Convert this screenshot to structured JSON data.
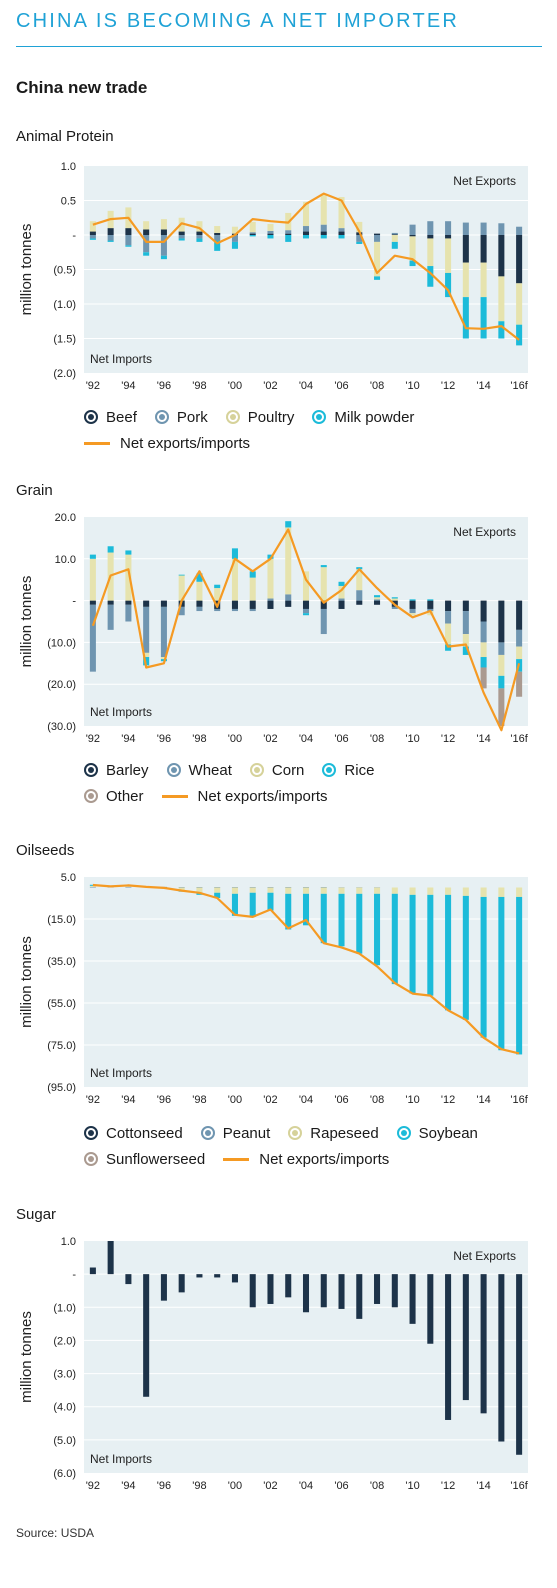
{
  "header": {
    "title": "CHINA IS BECOMING A NET IMPORTER",
    "subtitle": "China new trade",
    "source": "Source: USDA"
  },
  "colors": {
    "accent": "#1fa2d6",
    "panel_bg": "#e7f0f3",
    "navy": "#1d3349",
    "grey_blue": "#6f95b0",
    "cream": "#e6e3ae",
    "cyan": "#1cbbd9",
    "taupe": "#aa9a90",
    "orange": "#f59a23"
  },
  "chart_data": [
    {
      "type": "bar",
      "title": "Animal Protein",
      "ylabel": "million tonnes",
      "ylim": [
        -2.0,
        1.0
      ],
      "yticks": [
        1.0,
        0.5,
        0,
        -0.5,
        -1.0,
        -1.5,
        -2.0
      ],
      "ytick_labels": [
        "1.0",
        "0.5",
        "-",
        "(0.5)",
        "(1.0)",
        "(1.5)",
        "(2.0)"
      ],
      "stacked": true,
      "categories": [
        "1992",
        "1993",
        "1994",
        "1995",
        "1996",
        "1997",
        "1998",
        "1999",
        "2000",
        "2001",
        "2002",
        "2003",
        "2004",
        "2005",
        "2006",
        "2007",
        "2008",
        "2009",
        "2010",
        "2011",
        "2012",
        "2013",
        "2014",
        "2015",
        "2016f"
      ],
      "xtick_labels": [
        "'92",
        "'94",
        "'96",
        "'98",
        "'00",
        "'02",
        "'04",
        "'06",
        "'08",
        "'10",
        "'12",
        "'14",
        "'16f"
      ],
      "annotations": {
        "top": "Net Exports",
        "bottom": "Net Imports"
      },
      "series": [
        {
          "name": "Beef",
          "color": "#1d3349",
          "values": [
            0.05,
            0.1,
            0.1,
            0.08,
            0.08,
            0.05,
            0.05,
            0.03,
            0.02,
            0.02,
            0.02,
            0.02,
            0.05,
            0.05,
            0.05,
            0.04,
            0.02,
            0.01,
            -0.02,
            -0.05,
            -0.05,
            -0.4,
            -0.4,
            -0.6,
            -0.7
          ]
        },
        {
          "name": "Pork",
          "color": "#6f95b0",
          "values": [
            -0.05,
            -0.08,
            -0.15,
            -0.25,
            -0.3,
            -0.05,
            -0.05,
            -0.08,
            -0.1,
            0.02,
            0.04,
            0.05,
            0.08,
            0.1,
            0.05,
            -0.1,
            -0.1,
            0.02,
            0.15,
            0.2,
            0.2,
            0.18,
            0.18,
            0.17,
            0.12
          ]
        },
        {
          "name": "Poultry",
          "color": "#e6e3ae",
          "values": [
            0.15,
            0.25,
            0.3,
            0.12,
            0.15,
            0.2,
            0.15,
            0.1,
            0.1,
            0.15,
            0.1,
            0.25,
            0.35,
            0.45,
            0.45,
            0.15,
            -0.5,
            -0.1,
            -0.35,
            -0.4,
            -0.5,
            -0.5,
            -0.5,
            -0.65,
            -0.6
          ]
        },
        {
          "name": "Milk powder",
          "color": "#1cbbd9",
          "values": [
            -0.02,
            -0.02,
            -0.02,
            -0.05,
            -0.05,
            -0.03,
            -0.05,
            -0.15,
            -0.1,
            -0.02,
            -0.05,
            -0.1,
            -0.05,
            -0.05,
            -0.05,
            -0.03,
            -0.05,
            -0.1,
            -0.08,
            -0.3,
            -0.35,
            -0.6,
            -0.6,
            -0.25,
            -0.3
          ]
        }
      ],
      "line": {
        "name": "Net exports/imports",
        "color": "#f59a23",
        "values": [
          0.15,
          0.23,
          0.25,
          -0.1,
          -0.1,
          0.17,
          0.1,
          -0.12,
          0.0,
          0.23,
          0.2,
          0.18,
          0.45,
          0.6,
          0.5,
          0.05,
          -0.55,
          -0.3,
          -0.35,
          -0.55,
          -0.8,
          -1.35,
          -1.36,
          -1.32,
          -1.52
        ]
      },
      "legend": [
        {
          "label": "Beef",
          "color": "#1d3349",
          "kind": "circle"
        },
        {
          "label": "Pork",
          "color": "#6f95b0",
          "kind": "circle"
        },
        {
          "label": "Poultry",
          "color": "#e6e3ae",
          "kind": "circle"
        },
        {
          "label": "Milk powder",
          "color": "#1cbbd9",
          "kind": "circle"
        },
        {
          "label": "Net exports/imports",
          "color": "#f59a23",
          "kind": "line"
        }
      ]
    },
    {
      "type": "bar",
      "title": "Grain",
      "ylabel": "million tonnes",
      "ylim": [
        -30.0,
        20.0
      ],
      "yticks": [
        20,
        10,
        0,
        -10,
        -20,
        -30
      ],
      "ytick_labels": [
        "20.0",
        "10.0",
        "-",
        "(10.0)",
        "(20.0)",
        "(30.0)"
      ],
      "stacked": true,
      "categories": [
        "1992",
        "1993",
        "1994",
        "1995",
        "1996",
        "1997",
        "1998",
        "1999",
        "2000",
        "2001",
        "2002",
        "2003",
        "2004",
        "2005",
        "2006",
        "2007",
        "2008",
        "2009",
        "2010",
        "2011",
        "2012",
        "2013",
        "2014",
        "2015",
        "2016f"
      ],
      "xtick_labels": [
        "'92",
        "'94",
        "'96",
        "'98",
        "'00",
        "'02",
        "'04",
        "'06",
        "'08",
        "'10",
        "'12",
        "'14",
        "'16f"
      ],
      "annotations": {
        "top": "Net Exports",
        "bottom": "Net Imports"
      },
      "series": [
        {
          "name": "Barley",
          "color": "#1d3349",
          "values": [
            -1,
            -1,
            -1,
            -1.5,
            -1.5,
            -1.5,
            -1.5,
            -2,
            -2,
            -2,
            -2,
            -1.5,
            -2,
            -2,
            -2,
            -1,
            -1,
            -1.5,
            -2,
            -2,
            -2.5,
            -2.5,
            -5,
            -10,
            -7
          ]
        },
        {
          "name": "Wheat",
          "color": "#6f95b0",
          "values": [
            -16,
            -6,
            -4,
            -11,
            -12,
            -2,
            -1,
            -0.5,
            -0.5,
            -0.5,
            0.5,
            1.5,
            -1,
            -6,
            0.5,
            2.5,
            0.3,
            -0.5,
            -1,
            -0.5,
            -3,
            -5.5,
            -5,
            -3,
            -4
          ]
        },
        {
          "name": "Corn",
          "color": "#e6e3ae",
          "values": [
            10,
            11.5,
            11,
            -1,
            -0.5,
            6,
            4.5,
            3,
            10,
            5.5,
            9.5,
            16,
            7,
            8,
            3,
            5,
            0.5,
            0.5,
            -0.5,
            -1,
            -5,
            -3,
            -3.5,
            -5,
            -3
          ]
        },
        {
          "name": "Rice",
          "color": "#1cbbd9",
          "values": [
            1,
            1.5,
            1,
            -2,
            -0.5,
            0.2,
            2,
            0.8,
            2.5,
            1.5,
            1,
            1.5,
            -0.5,
            0.5,
            1,
            0.5,
            0.5,
            0.3,
            0.3,
            0.3,
            -1.5,
            -2,
            -2.5,
            -3,
            -3
          ]
        },
        {
          "name": "Other",
          "color": "#aa9a90",
          "values": [
            0,
            0,
            0,
            0,
            0,
            0,
            0,
            0,
            0,
            0,
            0,
            0,
            0,
            0,
            0,
            0,
            0,
            0,
            0,
            0,
            0,
            0,
            -5,
            -9,
            -6
          ]
        }
      ],
      "line": {
        "name": "Net exports/imports",
        "color": "#f59a23",
        "values": [
          -6,
          6,
          7.5,
          -16,
          -15,
          0,
          7,
          -1.5,
          10,
          7,
          10,
          17,
          5,
          -0.5,
          2.5,
          7.5,
          3,
          -1,
          -4,
          -2.5,
          -11,
          -10.5,
          -22,
          -31,
          -15
        ]
      },
      "legend": [
        {
          "label": "Barley",
          "color": "#1d3349",
          "kind": "circle"
        },
        {
          "label": "Wheat",
          "color": "#6f95b0",
          "kind": "circle"
        },
        {
          "label": "Corn",
          "color": "#e6e3ae",
          "kind": "circle"
        },
        {
          "label": "Rice",
          "color": "#1cbbd9",
          "kind": "circle"
        },
        {
          "label": "Other",
          "color": "#aa9a90",
          "kind": "circle"
        },
        {
          "label": "Net exports/imports",
          "color": "#f59a23",
          "kind": "line"
        }
      ]
    },
    {
      "type": "bar",
      "title": "Oilseeds",
      "ylabel": "million tonnes",
      "ylim": [
        -95.0,
        5.0
      ],
      "yticks": [
        5,
        -15,
        -35,
        -55,
        -75,
        -95
      ],
      "ytick_labels": [
        "5.0",
        "(15.0)",
        "(35.0)",
        "(55.0)",
        "(75.0)",
        "(95.0)"
      ],
      "stacked": true,
      "categories": [
        "1992",
        "1993",
        "1994",
        "1995",
        "1996",
        "1997",
        "1998",
        "1999",
        "2000",
        "2001",
        "2002",
        "2003",
        "2004",
        "2005",
        "2006",
        "2007",
        "2008",
        "2009",
        "2010",
        "2011",
        "2012",
        "2013",
        "2014",
        "2015",
        "2016f"
      ],
      "xtick_labels": [
        "'92",
        "'94",
        "'96",
        "'98",
        "'00",
        "'02",
        "'04",
        "'06",
        "'08",
        "'10",
        "'12",
        "'14",
        "'16f"
      ],
      "annotations": {
        "top": "",
        "bottom": "Net Imports"
      },
      "series": [
        {
          "name": "Cottonseed",
          "color": "#1d3349",
          "values": [
            0,
            0,
            0,
            0,
            0,
            0,
            0,
            0,
            0,
            0,
            0,
            0,
            0,
            0,
            0,
            0,
            0,
            0,
            0,
            0,
            0,
            0,
            0,
            0,
            0
          ]
        },
        {
          "name": "Peanut",
          "color": "#6f95b0",
          "values": [
            0.3,
            0.3,
            0.3,
            0.3,
            0.3,
            0.2,
            0.2,
            0.2,
            0.2,
            0.2,
            0.2,
            0.2,
            0.2,
            0.2,
            0.1,
            0.1,
            0.1,
            0,
            0,
            0,
            0,
            0,
            0,
            0,
            0
          ]
        },
        {
          "name": "Rapeseed",
          "color": "#e6e3ae",
          "values": [
            0.5,
            0.3,
            0.3,
            0,
            -0.2,
            -1.5,
            -2.5,
            -2.5,
            -3,
            -2.5,
            -2.5,
            -3,
            -3,
            -3,
            -3,
            -3,
            -3,
            -3,
            -3.5,
            -3.5,
            -3.5,
            -4,
            -4.5,
            -4.5,
            -4.5
          ]
        },
        {
          "name": "Soybean",
          "color": "#1cbbd9",
          "values": [
            0.5,
            0,
            0.5,
            0,
            0,
            -0.5,
            -1,
            -2.5,
            -10.5,
            -11.5,
            -8.5,
            -17,
            -15,
            -23.5,
            -25,
            -28.5,
            -34,
            -43,
            -47,
            -48,
            -55,
            -59,
            -67,
            -73,
            -75
          ]
        },
        {
          "name": "Sunflowerseed",
          "color": "#aa9a90",
          "values": [
            0,
            0,
            0,
            0,
            0,
            0,
            0,
            0,
            0,
            0,
            0,
            0,
            0,
            0,
            0,
            0,
            0,
            0,
            0,
            0,
            0,
            0,
            0,
            0,
            0
          ]
        }
      ],
      "line": {
        "name": "Net exports/imports",
        "color": "#f59a23",
        "values": [
          1.2,
          0.5,
          1.0,
          0.3,
          -0.2,
          -1.5,
          -2.5,
          -5,
          -13,
          -14,
          -10.5,
          -19.5,
          -15.5,
          -26.5,
          -28.5,
          -31.5,
          -37.5,
          -45.5,
          -50.5,
          -51.5,
          -58.5,
          -63,
          -71.5,
          -77,
          -79
        ]
      },
      "legend": [
        {
          "label": "Cottonseed",
          "color": "#1d3349",
          "kind": "circle"
        },
        {
          "label": "Peanut",
          "color": "#6f95b0",
          "kind": "circle"
        },
        {
          "label": "Rapeseed",
          "color": "#e6e3ae",
          "kind": "circle"
        },
        {
          "label": "Soybean",
          "color": "#1cbbd9",
          "kind": "circle"
        },
        {
          "label": "Sunflowerseed",
          "color": "#aa9a90",
          "kind": "circle"
        },
        {
          "label": "Net exports/imports",
          "color": "#f59a23",
          "kind": "line"
        }
      ]
    },
    {
      "type": "bar",
      "title": "Sugar",
      "ylabel": "million tonnes",
      "ylim": [
        -6.0,
        1.0
      ],
      "yticks": [
        1,
        0,
        -1,
        -2,
        -3,
        -4,
        -5,
        -6
      ],
      "ytick_labels": [
        "1.0",
        "-",
        "(1.0)",
        "(2.0)",
        "(3.0)",
        "(4.0)",
        "(5.0)",
        "(6.0)"
      ],
      "stacked": false,
      "categories": [
        "1992",
        "1993",
        "1994",
        "1995",
        "1996",
        "1997",
        "1998",
        "1999",
        "2000",
        "2001",
        "2002",
        "2003",
        "2004",
        "2005",
        "2006",
        "2007",
        "2008",
        "2009",
        "2010",
        "2011",
        "2012",
        "2013",
        "2014",
        "2015",
        "2016f"
      ],
      "xtick_labels": [
        "'92",
        "'94",
        "'96",
        "'98",
        "'00",
        "'02",
        "'04",
        "'06",
        "'08",
        "'10",
        "'12",
        "'14",
        "'16f"
      ],
      "annotations": {
        "top": "Net Exports",
        "bottom": "Net Imports"
      },
      "series": [
        {
          "name": "Sugar",
          "color": "#1d3349",
          "values": [
            0.2,
            1.0,
            -0.3,
            -3.7,
            -0.8,
            -0.55,
            -0.1,
            -0.1,
            -0.25,
            -1.0,
            -0.9,
            -0.7,
            -1.15,
            -1.0,
            -1.05,
            -1.35,
            -0.9,
            -1.0,
            -1.5,
            -2.1,
            -4.4,
            -3.8,
            -4.2,
            -5.05,
            -5.45
          ]
        }
      ],
      "legend": []
    }
  ]
}
